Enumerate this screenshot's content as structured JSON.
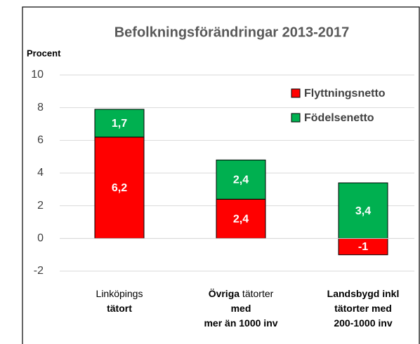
{
  "chart_data": {
    "type": "stacked_bar",
    "title": "Befolkningsförändringar 2013-2017",
    "y_label": "Procent",
    "categories": [
      [
        [
          {
            "text": "Linköpings",
            "bold": false
          }
        ],
        [
          {
            "text": "tätort",
            "bold": true
          }
        ]
      ],
      [
        [
          {
            "text": "Övriga",
            "bold": true
          },
          {
            "text": " tätorter",
            "bold": false
          }
        ],
        [
          {
            "text": "med",
            "bold": true
          }
        ],
        [
          {
            "text": "mer än 1000 inv",
            "bold": true
          }
        ]
      ],
      [
        [
          {
            "text": "Landsbygd inkl",
            "bold": true
          }
        ],
        [
          {
            "text": "tätorter med",
            "bold": true
          }
        ],
        [
          {
            "text": "200-1000 inv",
            "bold": true
          }
        ]
      ]
    ],
    "series": [
      {
        "name": "Flyttningsnetto",
        "color": "#ff0000",
        "values": [
          6.2,
          2.4,
          -1
        ],
        "value_labels": [
          "6,2",
          "2,4",
          "-1"
        ]
      },
      {
        "name": "Födelsenetto",
        "color": "#00b050",
        "values": [
          1.7,
          2.4,
          3.4
        ],
        "value_labels": [
          "1,7",
          "2,4",
          "3,4"
        ]
      }
    ],
    "ylim": [
      -2,
      10
    ],
    "yticks": [
      -2,
      0,
      2,
      4,
      6,
      8,
      10
    ],
    "grid": true,
    "legend": "top-right"
  }
}
